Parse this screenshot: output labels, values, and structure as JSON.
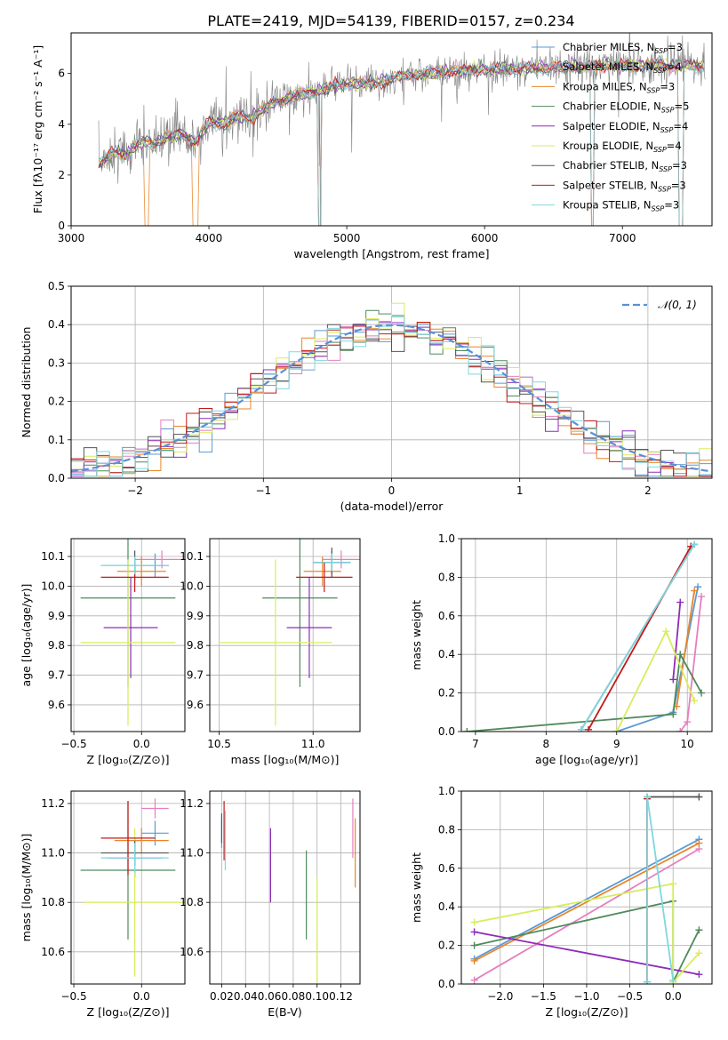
{
  "figure_title": "PLATE=2419, MJD=54139, FIBERID=0157, z=0.234",
  "models": [
    {
      "name": "Chabrier MILES",
      "nssp": "3",
      "color": "#5a9bd4"
    },
    {
      "name": "Salpeter MILES",
      "nssp": "4",
      "color": "#e57fc0"
    },
    {
      "name": "Kroupa MILES",
      "nssp": "3",
      "color": "#e8862c"
    },
    {
      "name": "Chabrier ELODIE",
      "nssp": "5",
      "color": "#4f8a5c"
    },
    {
      "name": "Salpeter ELODIE",
      "nssp": "4",
      "color": "#8e2cb8"
    },
    {
      "name": "Kroupa ELODIE",
      "nssp": "4",
      "color": "#d9ec5c"
    },
    {
      "name": "Chabrier STELIB",
      "nssp": "3",
      "color": "#555555"
    },
    {
      "name": "Salpeter STELIB",
      "nssp": "3",
      "color": "#c41818"
    },
    {
      "name": "Kroupa STELIB",
      "nssp": "3",
      "color": "#7ed7e0"
    }
  ],
  "chart_data": [
    {
      "id": "spectrum",
      "type": "line",
      "xlabel": "wavelength [Angstrom, rest frame]",
      "ylabel": "Flux [fλ10⁻¹⁷ erg cm⁻² s⁻¹ A⁻¹]",
      "xlim": [
        3000,
        7650
      ],
      "ylim": [
        0,
        7.6
      ],
      "xticks": [
        3000,
        4000,
        5000,
        6000,
        7000
      ],
      "yticks": [
        0,
        2,
        4,
        6
      ],
      "xtick_labels": [
        "3000",
        "4000",
        "5000",
        "6000",
        "7000"
      ],
      "ytick_labels": [
        "0",
        "2",
        "4",
        "6"
      ],
      "grid": false,
      "legend": "top-right",
      "observed_color": "#808080",
      "continuum": [
        [
          3200,
          2.4
        ],
        [
          3300,
          2.9
        ],
        [
          3400,
          2.8
        ],
        [
          3500,
          3.3
        ],
        [
          3600,
          3.2
        ],
        [
          3700,
          3.5
        ],
        [
          3800,
          3.6
        ],
        [
          3900,
          3.3
        ],
        [
          4000,
          4.1
        ],
        [
          4100,
          4.0
        ],
        [
          4200,
          4.3
        ],
        [
          4300,
          4.2
        ],
        [
          4400,
          4.6
        ],
        [
          4500,
          4.9
        ],
        [
          4600,
          5.1
        ],
        [
          4700,
          5.2
        ],
        [
          4800,
          5.3
        ],
        [
          4900,
          5.5
        ],
        [
          5000,
          5.6
        ],
        [
          5200,
          5.6
        ],
        [
          5400,
          5.9
        ],
        [
          5600,
          6.0
        ],
        [
          5800,
          6.1
        ],
        [
          6000,
          6.15
        ],
        [
          6200,
          6.2
        ],
        [
          6400,
          6.2
        ],
        [
          6600,
          6.25
        ],
        [
          6800,
          6.3
        ],
        [
          7000,
          6.3
        ],
        [
          7200,
          6.35
        ],
        [
          7400,
          6.3
        ],
        [
          7600,
          6.3
        ]
      ]
    },
    {
      "id": "residuals",
      "type": "line",
      "xlabel": "(data-model)/error",
      "ylabel": "Normed distribution",
      "xlim": [
        -2.5,
        2.5
      ],
      "ylim": [
        0,
        0.5
      ],
      "xticks": [
        -2,
        -1,
        0,
        1,
        2
      ],
      "yticks": [
        0,
        0.1,
        0.2,
        0.3,
        0.4,
        0.5
      ],
      "xtick_labels": [
        "−2",
        "−1",
        "0",
        "1",
        "2"
      ],
      "ytick_labels": [
        "0.0",
        "0.1",
        "0.2",
        "0.3",
        "0.4",
        "0.5"
      ],
      "grid": true,
      "legend": "top-right",
      "gaussian_label": "𝒩(0, 1)",
      "gaussian_color": "#5a8fd8",
      "bin_width": 0.1
    },
    {
      "id": "age_vs_Z",
      "type": "scatter",
      "xlabel": "Z [log₁₀(Z/Z⊙)]",
      "ylabel": "age  [log₁₀(age/yr)]",
      "xlim": [
        -0.52,
        0.32
      ],
      "ylim": [
        9.51,
        10.16
      ],
      "xticks": [
        -0.5,
        0.0
      ],
      "yticks": [
        9.6,
        9.7,
        9.8,
        9.9,
        10.0,
        10.1
      ],
      "xtick_labels": [
        "−0.5",
        "0.0"
      ],
      "ytick_labels": [
        "9.6",
        "9.7",
        "9.8",
        "9.9",
        "10.0",
        "10.1"
      ],
      "grid": true,
      "points": [
        {
          "m": 0,
          "x": 0.1,
          "xe": 0.1,
          "y": 10.07,
          "ye": 0.04
        },
        {
          "m": 1,
          "x": 0.15,
          "xe": 0.2,
          "y": 10.09,
          "ye": 0.03
        },
        {
          "m": 2,
          "x": 0.0,
          "xe": 0.18,
          "y": 10.05,
          "ye": 0.05
        },
        {
          "m": 3,
          "x": -0.1,
          "xe": 0.35,
          "y": 9.96,
          "ye": 0.3
        },
        {
          "m": 4,
          "x": -0.08,
          "xe": 0.2,
          "y": 9.86,
          "ye": 0.17
        },
        {
          "m": 5,
          "x": -0.1,
          "xe": 0.35,
          "y": 9.81,
          "ye": 0.28
        },
        {
          "m": 6,
          "x": -0.05,
          "xe": 0.25,
          "y": 10.07,
          "ye": 0.05
        },
        {
          "m": 7,
          "x": -0.05,
          "xe": 0.25,
          "y": 10.03,
          "ye": 0.05
        },
        {
          "m": 8,
          "x": -0.05,
          "xe": 0.25,
          "y": 10.07,
          "ye": 0.03
        }
      ]
    },
    {
      "id": "age_vs_mass",
      "type": "scatter",
      "xlabel": "mass [log₁₀(M/M⊙)]",
      "ylabel": "",
      "xlim": [
        10.45,
        11.25
      ],
      "ylim": [
        9.51,
        10.16
      ],
      "xticks": [
        10.5,
        11.0
      ],
      "yticks": [
        9.6,
        9.7,
        9.8,
        9.9,
        10.0,
        10.1
      ],
      "xtick_labels": [
        "10.5",
        "11.0"
      ],
      "ytick_labels": [
        "9.6",
        "9.7",
        "9.8",
        "9.9",
        "10.0",
        "10.1"
      ],
      "grid": true,
      "points": [
        {
          "m": 0,
          "x": 11.1,
          "xe": 0.1,
          "y": 10.08,
          "ye": 0.04
        },
        {
          "m": 1,
          "x": 11.15,
          "xe": 0.1,
          "y": 10.09,
          "ye": 0.03
        },
        {
          "m": 2,
          "x": 11.05,
          "xe": 0.1,
          "y": 10.05,
          "ye": 0.05
        },
        {
          "m": 3,
          "x": 10.93,
          "xe": 0.2,
          "y": 9.96,
          "ye": 0.3
        },
        {
          "m": 4,
          "x": 10.98,
          "xe": 0.12,
          "y": 9.86,
          "ye": 0.17
        },
        {
          "m": 5,
          "x": 10.8,
          "xe": 0.3,
          "y": 9.81,
          "ye": 0.28
        },
        {
          "m": 6,
          "x": 11.1,
          "xe": 0.1,
          "y": 10.08,
          "ye": 0.05
        },
        {
          "m": 7,
          "x": 11.06,
          "xe": 0.15,
          "y": 10.03,
          "ye": 0.05
        },
        {
          "m": 8,
          "x": 11.1,
          "xe": 0.1,
          "y": 10.08,
          "ye": 0.03
        }
      ]
    },
    {
      "id": "weight_vs_age",
      "type": "line",
      "xlabel": "age  [log₁₀(age/yr)]",
      "ylabel": "mass weight",
      "xlim": [
        6.8,
        10.35
      ],
      "ylim": [
        0,
        1.0
      ],
      "xticks": [
        7,
        8,
        9,
        10
      ],
      "yticks": [
        0,
        0.2,
        0.4,
        0.6,
        0.8,
        1.0
      ],
      "xtick_labels": [
        "7",
        "8",
        "9",
        "10"
      ],
      "ytick_labels": [
        "0.0",
        "0.2",
        "0.4",
        "0.6",
        "0.8",
        "1.0"
      ],
      "grid": true,
      "series": [
        {
          "m": 0,
          "points": [
            [
              9.0,
              0.0
            ],
            [
              9.8,
              0.1
            ],
            [
              10.15,
              0.75
            ]
          ]
        },
        {
          "m": 1,
          "points": [
            [
              9.9,
              0.0
            ],
            [
              10.0,
              0.05
            ],
            [
              10.2,
              0.7
            ]
          ]
        },
        {
          "m": 2,
          "points": [
            [
              9.85,
              0.13
            ],
            [
              10.1,
              0.73
            ]
          ]
        },
        {
          "m": 3,
          "points": [
            [
              6.88,
              0.0
            ],
            [
              9.8,
              0.09
            ],
            [
              9.9,
              0.4
            ],
            [
              10.2,
              0.2
            ]
          ]
        },
        {
          "m": 4,
          "points": [
            [
              9.8,
              0.27
            ],
            [
              9.9,
              0.67
            ]
          ]
        },
        {
          "m": 5,
          "points": [
            [
              9.0,
              0.0
            ],
            [
              9.7,
              0.52
            ],
            [
              10.1,
              0.16
            ]
          ]
        },
        {
          "m": 6,
          "points": [
            [
              8.5,
              0.01
            ],
            [
              10.1,
              0.97
            ]
          ]
        },
        {
          "m": 7,
          "points": [
            [
              8.6,
              0.01
            ],
            [
              10.05,
              0.96
            ]
          ]
        },
        {
          "m": 8,
          "points": [
            [
              8.5,
              0.01
            ],
            [
              10.1,
              0.97
            ]
          ]
        }
      ]
    },
    {
      "id": "mass_vs_Z",
      "type": "scatter",
      "xlabel": "Z [log₁₀(Z/Z⊙)]",
      "ylabel": "mass [log₁₀(M/M⊙)]",
      "xlim": [
        -0.52,
        0.32
      ],
      "ylim": [
        10.47,
        11.25
      ],
      "xticks": [
        -0.5,
        0.0
      ],
      "yticks": [
        10.6,
        10.8,
        11.0,
        11.2
      ],
      "xtick_labels": [
        "−0.5",
        "0.0"
      ],
      "ytick_labels": [
        "10.6",
        "10.8",
        "11.0",
        "11.2"
      ],
      "grid": true,
      "points": [
        {
          "m": 0,
          "x": 0.1,
          "xe": 0.1,
          "y": 11.08,
          "ye": 0.05
        },
        {
          "m": 1,
          "x": 0.1,
          "xe": 0.1,
          "y": 11.18,
          "ye": 0.04
        },
        {
          "m": 2,
          "x": 0.0,
          "xe": 0.2,
          "y": 11.05,
          "ye": 0.05
        },
        {
          "m": 3,
          "x": -0.1,
          "xe": 0.35,
          "y": 10.93,
          "ye": 0.28
        },
        {
          "m": 4,
          "x": -0.05,
          "xe": 0.2,
          "y": 10.98,
          "ye": 0.08
        },
        {
          "m": 5,
          "x": -0.05,
          "xe": 0.38,
          "y": 10.8,
          "ye": 0.3
        },
        {
          "m": 6,
          "x": -0.05,
          "xe": 0.25,
          "y": 11.0,
          "ye": 0.05
        },
        {
          "m": 7,
          "x": -0.1,
          "xe": 0.2,
          "y": 11.06,
          "ye": 0.15
        },
        {
          "m": 8,
          "x": -0.05,
          "xe": 0.25,
          "y": 10.98,
          "ye": 0.06
        }
      ]
    },
    {
      "id": "mass_vs_EBV",
      "type": "scatter",
      "xlabel": "E(B-V)",
      "ylabel": "",
      "xlim": [
        0.01,
        0.136
      ],
      "ylim": [
        10.47,
        11.25
      ],
      "xticks": [
        0.02,
        0.04,
        0.06,
        0.08,
        0.1,
        0.12
      ],
      "yticks": [
        10.6,
        10.8,
        11.0,
        11.2
      ],
      "xtick_labels": [
        "0.02",
        "0.04",
        "0.06",
        "0.08",
        "0.10",
        "0.12"
      ],
      "ytick_labels": [
        "10.6",
        "10.8",
        "11.0",
        "11.2"
      ],
      "grid": true,
      "points": [
        {
          "m": 0,
          "x": 0.02,
          "xe": 0,
          "y": 11.08,
          "ye": 0.06
        },
        {
          "m": 1,
          "x": 0.13,
          "xe": 0,
          "y": 11.1,
          "ye": 0.12
        },
        {
          "m": 2,
          "x": 0.132,
          "xe": 0,
          "y": 11.0,
          "ye": 0.14
        },
        {
          "m": 3,
          "x": 0.091,
          "xe": 0,
          "y": 10.83,
          "ye": 0.18
        },
        {
          "m": 4,
          "x": 0.061,
          "xe": 0,
          "y": 10.95,
          "ye": 0.15
        },
        {
          "m": 5,
          "x": 0.1,
          "xe": 0,
          "y": 10.65,
          "ye": 0.25
        },
        {
          "m": 6,
          "x": 0.02,
          "xe": 0,
          "y": 11.1,
          "ye": 0.06
        },
        {
          "m": 7,
          "x": 0.022,
          "xe": 0,
          "y": 11.09,
          "ye": 0.12
        },
        {
          "m": 8,
          "x": 0.023,
          "xe": 0,
          "y": 11.05,
          "ye": 0.12
        }
      ]
    },
    {
      "id": "weight_vs_Z",
      "type": "line",
      "xlabel": "Z [log₁₀(Z/Z⊙)]",
      "ylabel": "mass weight",
      "xlim": [
        -2.45,
        0.45
      ],
      "ylim": [
        0,
        1.0
      ],
      "xticks": [
        -2.0,
        -1.5,
        -1.0,
        -0.5,
        0.0
      ],
      "yticks": [
        0,
        0.2,
        0.4,
        0.6,
        0.8,
        1.0
      ],
      "xtick_labels": [
        "−2.0",
        "−1.5",
        "−1.0",
        "−0.5",
        "0.0"
      ],
      "ytick_labels": [
        "0.0",
        "0.2",
        "0.4",
        "0.6",
        "0.8",
        "1.0"
      ],
      "grid": true,
      "series": [
        {
          "m": 0,
          "points": [
            [
              -2.3,
              0.13
            ],
            [
              0.3,
              0.75
            ]
          ]
        },
        {
          "m": 1,
          "points": [
            [
              -2.3,
              0.02
            ],
            [
              0.3,
              0.7
            ]
          ]
        },
        {
          "m": 2,
          "points": [
            [
              -2.3,
              0.12
            ],
            [
              0.3,
              0.73
            ]
          ]
        },
        {
          "m": 3,
          "points": [
            [
              -2.3,
              0.2
            ],
            [
              0.0,
              0.43
            ],
            [
              0.0,
              0.01
            ],
            [
              0.3,
              0.28
            ]
          ]
        },
        {
          "m": 4,
          "points": [
            [
              -2.3,
              0.27
            ],
            [
              0.3,
              0.05
            ]
          ]
        },
        {
          "m": 5,
          "points": [
            [
              -2.3,
              0.32
            ],
            [
              0.0,
              0.52
            ],
            [
              0.0,
              0.01
            ],
            [
              0.3,
              0.16
            ]
          ]
        },
        {
          "m": 6,
          "points": [
            [
              -0.3,
              0.01
            ],
            [
              -0.3,
              0.97
            ],
            [
              0.3,
              0.97
            ]
          ]
        },
        {
          "m": 7,
          "points": [
            [
              -0.3,
              0.01
            ],
            [
              -0.3,
              0.96
            ]
          ]
        },
        {
          "m": 8,
          "points": [
            [
              -0.3,
              0.01
            ],
            [
              -0.3,
              0.97
            ],
            [
              0.0,
              0.02
            ]
          ]
        }
      ]
    }
  ]
}
